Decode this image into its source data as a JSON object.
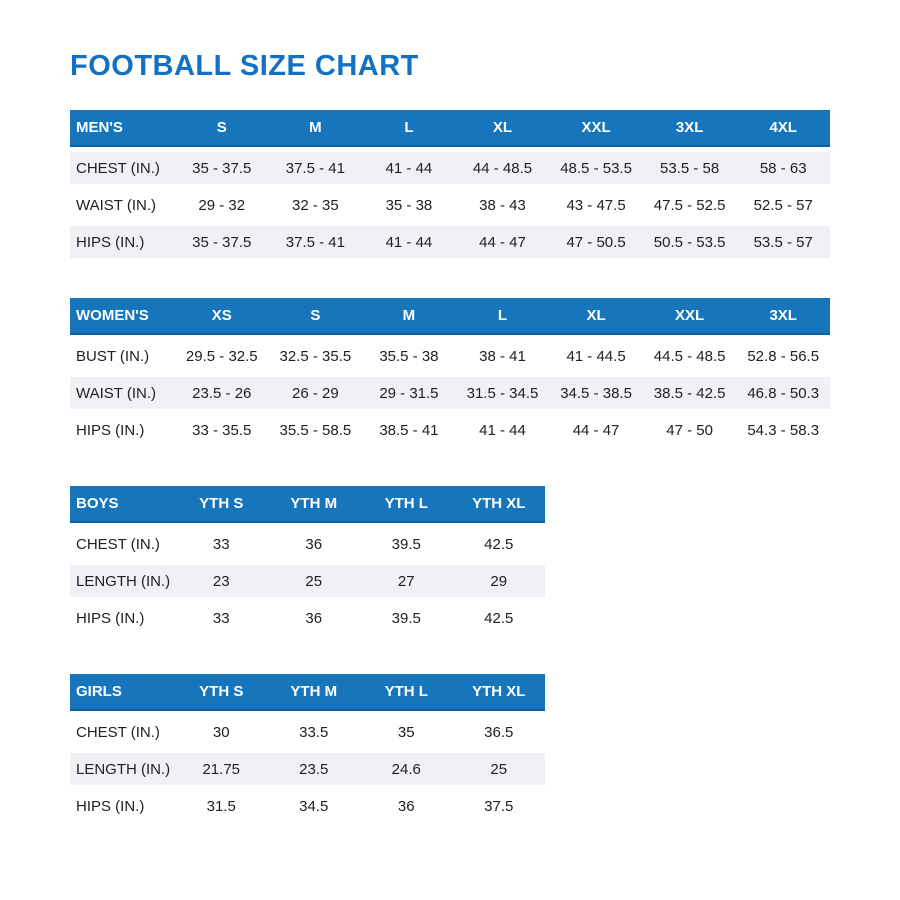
{
  "page": {
    "title": "FOOTBALL SIZE CHART"
  },
  "colors": {
    "title_blue": "#1371c3",
    "header_blue": "#1775bc",
    "header_edge_blue": "#0b5fa4",
    "row_shaded_gray": "#f0f1f4",
    "text_dark": "#202124"
  },
  "tables": [
    {
      "id": "mens",
      "header_label": "MEN'S",
      "columns": [
        "S",
        "M",
        "L",
        "XL",
        "XXL",
        "3XL",
        "4XL"
      ],
      "size": "wide",
      "rows": [
        {
          "label": "CHEST (IN.)",
          "shaded": true,
          "values": [
            "35 - 37.5",
            "37.5 - 41",
            "41 - 44",
            "44 - 48.5",
            "48.5 - 53.5",
            "53.5 - 58",
            "58 - 63"
          ]
        },
        {
          "label": "WAIST (IN.)",
          "shaded": false,
          "values": [
            "29 - 32",
            "32 - 35",
            "35 - 38",
            "38 - 43",
            "43 - 47.5",
            "47.5 - 52.5",
            "52.5 - 57"
          ]
        },
        {
          "label": "HIPS (IN.)",
          "shaded": true,
          "values": [
            "35 - 37.5",
            "37.5 - 41",
            "41 - 44",
            "44 - 47",
            "47 - 50.5",
            "50.5 - 53.5",
            "53.5 - 57"
          ]
        }
      ]
    },
    {
      "id": "womens",
      "header_label": "WOMEN'S",
      "columns": [
        "XS",
        "S",
        "M",
        "L",
        "XL",
        "XXL",
        "3XL"
      ],
      "size": "wide",
      "rows": [
        {
          "label": "BUST (IN.)",
          "shaded": false,
          "values": [
            "29.5 - 32.5",
            "32.5 - 35.5",
            "35.5 - 38",
            "38 - 41",
            "41 - 44.5",
            "44.5 - 48.5",
            "52.8 - 56.5"
          ]
        },
        {
          "label": "WAIST (IN.)",
          "shaded": true,
          "values": [
            "23.5 - 26",
            "26 - 29",
            "29 - 31.5",
            "31.5 - 34.5",
            "34.5 - 38.5",
            "38.5 - 42.5",
            "46.8 - 50.3"
          ]
        },
        {
          "label": "HIPS (IN.)",
          "shaded": false,
          "values": [
            "33 - 35.5",
            "35.5 - 58.5",
            "38.5 - 41",
            "41 - 44",
            "44 - 47",
            "47 - 50",
            "54.3 - 58.3"
          ]
        }
      ]
    },
    {
      "id": "boys",
      "header_label": "BOYS",
      "columns": [
        "YTH S",
        "YTH M",
        "YTH L",
        "YTH XL"
      ],
      "size": "narrow",
      "rows": [
        {
          "label": "CHEST (IN.)",
          "shaded": false,
          "values": [
            "33",
            "36",
            "39.5",
            "42.5"
          ]
        },
        {
          "label": "LENGTH (IN.)",
          "shaded": true,
          "values": [
            "23",
            "25",
            "27",
            "29"
          ]
        },
        {
          "label": "HIPS (IN.)",
          "shaded": false,
          "values": [
            "33",
            "36",
            "39.5",
            "42.5"
          ]
        }
      ]
    },
    {
      "id": "girls",
      "header_label": "GIRLS",
      "columns": [
        "YTH S",
        "YTH M",
        "YTH L",
        "YTH XL"
      ],
      "size": "narrow",
      "rows": [
        {
          "label": "CHEST (IN.)",
          "shaded": false,
          "values": [
            "30",
            "33.5",
            "35",
            "36.5"
          ]
        },
        {
          "label": "LENGTH (IN.)",
          "shaded": true,
          "values": [
            "21.75",
            "23.5",
            "24.6",
            "25"
          ]
        },
        {
          "label": "HIPS (IN.)",
          "shaded": false,
          "values": [
            "31.5",
            "34.5",
            "36",
            "37.5"
          ]
        }
      ]
    }
  ]
}
